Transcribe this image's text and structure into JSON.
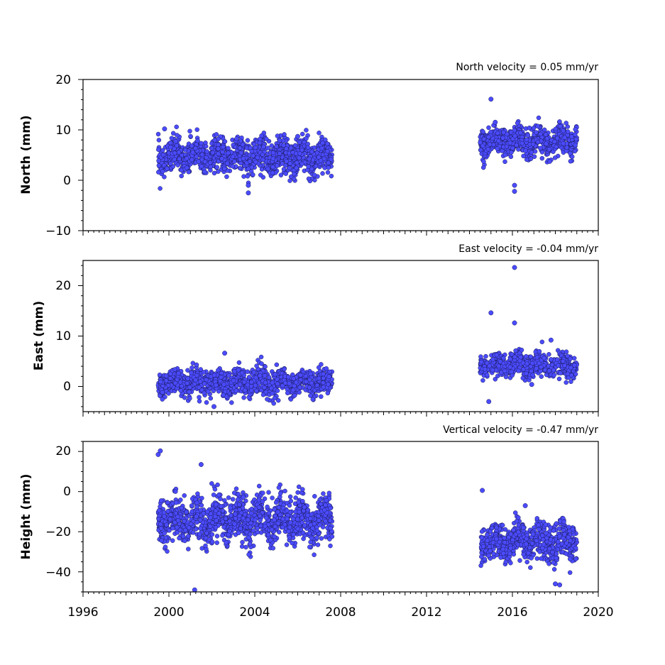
{
  "chart_data": [
    {
      "type": "scatter",
      "title": "North velocity = 0.05 mm/yr",
      "ylabel": "North (mm)",
      "xlim": [
        1996,
        2020
      ],
      "ylim": [
        -10,
        20
      ],
      "yticks": [
        "20",
        "10",
        "0",
        "−10"
      ],
      "color": "#4b4bff",
      "segments": [
        {
          "start": 1999.5,
          "end": 2007.6,
          "mean": 4.7,
          "spread": 3.0
        },
        {
          "start": 2014.5,
          "end": 2019.0,
          "mean": 7.8,
          "spread": 2.5
        }
      ],
      "outliers": [
        {
          "x": 2003.7,
          "y": -1.0
        },
        {
          "x": 2003.7,
          "y": -2.5
        },
        {
          "x": 2015.0,
          "y": 16.1
        },
        {
          "x": 2016.1,
          "y": -1.0
        },
        {
          "x": 2016.1,
          "y": -2.2
        },
        {
          "x": 1999.8,
          "y": 10.2
        },
        {
          "x": 2006.0,
          "y": 8.7
        },
        {
          "x": 2015.2,
          "y": 11.5
        }
      ]
    },
    {
      "type": "scatter",
      "title": "East velocity = -0.04 mm/yr",
      "ylabel": "East (mm)",
      "xlim": [
        1996,
        2020
      ],
      "ylim": [
        -5,
        25
      ],
      "yticks": [
        "20",
        "10",
        "0"
      ],
      "color": "#4b4bff",
      "segments": [
        {
          "start": 1999.5,
          "end": 2007.6,
          "mean": 0.8,
          "spread": 2.2
        },
        {
          "start": 2014.5,
          "end": 2019.0,
          "mean": 4.2,
          "spread": 2.0
        }
      ],
      "outliers": [
        {
          "x": 2016.1,
          "y": 23.6
        },
        {
          "x": 2015.0,
          "y": 14.6
        },
        {
          "x": 2016.1,
          "y": 12.6
        },
        {
          "x": 2014.9,
          "y": -3.0
        },
        {
          "x": 2002.1,
          "y": -4.0
        },
        {
          "x": 2002.6,
          "y": 6.6
        },
        {
          "x": 2017.8,
          "y": 9.2
        },
        {
          "x": 2016.9,
          "y": 0.4
        }
      ]
    },
    {
      "type": "scatter",
      "title": "Vertical velocity = -0.47 mm/yr",
      "ylabel": "Height (mm)",
      "xlim": [
        1996,
        2020
      ],
      "ylim": [
        -50,
        25
      ],
      "yticks": [
        "20",
        "0",
        "−20",
        "−40"
      ],
      "color": "#4b4bff",
      "segments": [
        {
          "start": 1999.5,
          "end": 2007.6,
          "mean": -14,
          "spread": 10
        },
        {
          "start": 2014.5,
          "end": 2019.0,
          "mean": -25,
          "spread": 8
        }
      ],
      "outliers": [
        {
          "x": 1999.6,
          "y": 20.3
        },
        {
          "x": 1999.5,
          "y": 18.5
        },
        {
          "x": 2001.2,
          "y": -49.0
        },
        {
          "x": 2001.5,
          "y": 13.5
        },
        {
          "x": 2018.0,
          "y": -46.0
        },
        {
          "x": 2018.2,
          "y": -46.5
        },
        {
          "x": 2014.6,
          "y": 0.6
        },
        {
          "x": 2016.6,
          "y": -7.0
        }
      ]
    }
  ],
  "xaxis": {
    "tick_values": [
      1996,
      2000,
      2004,
      2008,
      2012,
      2016,
      2020
    ],
    "tick_labels": [
      "1996",
      "2000",
      "2004",
      "2008",
      "2012",
      "2016",
      "2020"
    ]
  }
}
